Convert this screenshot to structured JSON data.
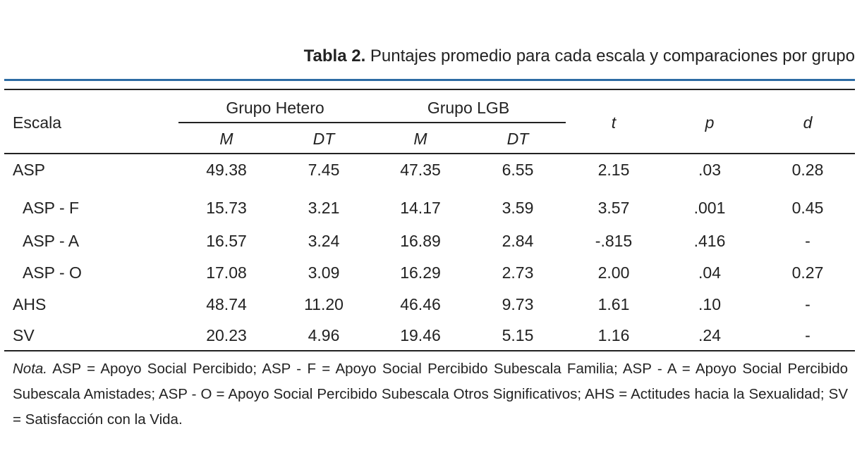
{
  "table": {
    "caption": {
      "label": "Tabla 2.",
      "text": "Puntajes promedio para cada escala y comparaciones por grupo"
    },
    "header": {
      "escala": "Escala",
      "group1": "Grupo Hetero",
      "group2": "Grupo LGB",
      "m": "M",
      "dt": "DT",
      "t": "t",
      "p": "p",
      "d": "d"
    },
    "rows": [
      {
        "name": "ASP",
        "m1": "49.38",
        "dt1": "7.45",
        "m2": "47.35",
        "dt2": "6.55",
        "t": "2.15",
        "p": ".03",
        "d": "0.28"
      },
      {
        "name": "ASP - F",
        "m1": "15.73",
        "dt1": "3.21",
        "m2": "14.17",
        "dt2": "3.59",
        "t": "3.57",
        "p": ".001",
        "d": "0.45"
      },
      {
        "name": "ASP - A",
        "m1": "16.57",
        "dt1": "3.24",
        "m2": "16.89",
        "dt2": "2.84",
        "t": "-.815",
        "p": ".416",
        "d": "-"
      },
      {
        "name": "ASP - O",
        "m1": "17.08",
        "dt1": "3.09",
        "m2": "16.29",
        "dt2": "2.73",
        "t": "2.00",
        "p": ".04",
        "d": "0.27"
      },
      {
        "name": "AHS",
        "m1": "48.74",
        "dt1": "11.20",
        "m2": "46.46",
        "dt2": "9.73",
        "t": "1.61",
        "p": ".10",
        "d": "-"
      },
      {
        "name": "SV",
        "m1": "20.23",
        "dt1": "4.96",
        "m2": "19.46",
        "dt2": "5.15",
        "t": "1.16",
        "p": ".24",
        "d": "-"
      }
    ],
    "note": {
      "label": "Nota.",
      "text": "ASP = Apoyo Social Percibido; ASP - F = Apoyo Social Percibido Subescala Familia; ASP - A = Apoyo Social Percibido Subescala Amistades; ASP - O = Apoyo Social Percibido Subescala Otros Significativos; AHS = Actitudes hacia la Sexualidad; SV = Satisfacción con la Vida."
    }
  }
}
